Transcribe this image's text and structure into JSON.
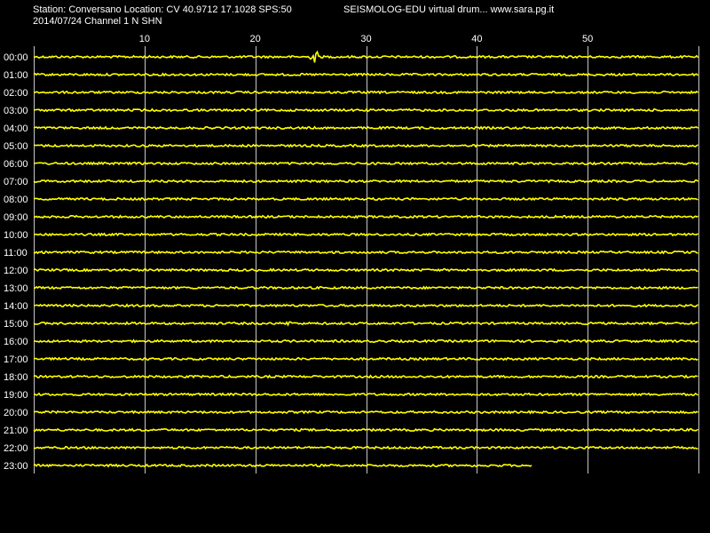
{
  "header": {
    "station_line": "Station: Conversano Location: CV 40.9712 17.1028 SPS:50",
    "brand_line": "SEISMOLOG-EDU virtual drum... www.sara.pg.it",
    "date_channel_line": "2014/07/24  Channel 1 N SHN"
  },
  "chart_data": {
    "type": "line",
    "title": "",
    "x_unit": "minutes",
    "xlim": [
      0,
      60
    ],
    "x_ticks": [
      10,
      20,
      30,
      40,
      50
    ],
    "grid": true,
    "trace_color": "#ffff00",
    "grid_color": "#c8c8c8",
    "background": "#000000",
    "rows": [
      {
        "hour": "00:00",
        "end_minute": 60,
        "events": [
          {
            "minute": 25.4,
            "amplitude": 9
          }
        ]
      },
      {
        "hour": "01:00",
        "end_minute": 60,
        "events": []
      },
      {
        "hour": "02:00",
        "end_minute": 60,
        "events": []
      },
      {
        "hour": "03:00",
        "end_minute": 60,
        "events": []
      },
      {
        "hour": "04:00",
        "end_minute": 60,
        "events": []
      },
      {
        "hour": "05:00",
        "end_minute": 60,
        "events": []
      },
      {
        "hour": "06:00",
        "end_minute": 60,
        "events": []
      },
      {
        "hour": "07:00",
        "end_minute": 60,
        "events": []
      },
      {
        "hour": "08:00",
        "end_minute": 60,
        "events": []
      },
      {
        "hour": "09:00",
        "end_minute": 60,
        "events": []
      },
      {
        "hour": "10:00",
        "end_minute": 60,
        "events": []
      },
      {
        "hour": "11:00",
        "end_minute": 60,
        "events": []
      },
      {
        "hour": "12:00",
        "end_minute": 60,
        "events": []
      },
      {
        "hour": "13:00",
        "end_minute": 60,
        "events": []
      },
      {
        "hour": "14:00",
        "end_minute": 60,
        "events": []
      },
      {
        "hour": "15:00",
        "end_minute": 60,
        "events": [
          {
            "minute": 23.0,
            "amplitude": 3
          }
        ]
      },
      {
        "hour": "16:00",
        "end_minute": 60,
        "events": []
      },
      {
        "hour": "17:00",
        "end_minute": 60,
        "events": []
      },
      {
        "hour": "18:00",
        "end_minute": 60,
        "events": []
      },
      {
        "hour": "19:00",
        "end_minute": 60,
        "events": []
      },
      {
        "hour": "20:00",
        "end_minute": 60,
        "events": []
      },
      {
        "hour": "21:00",
        "end_minute": 60,
        "events": []
      },
      {
        "hour": "22:00",
        "end_minute": 60,
        "events": []
      },
      {
        "hour": "23:00",
        "end_minute": 45,
        "events": []
      }
    ]
  }
}
